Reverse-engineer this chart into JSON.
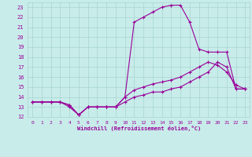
{
  "xlabel": "Windchill (Refroidissement éolien,°C)",
  "background_color": "#c8ecea",
  "grid_color": "#a8d4d0",
  "line_color": "#990099",
  "xlim": [
    -0.5,
    23.5
  ],
  "ylim": [
    12,
    23.5
  ],
  "xticks": [
    0,
    1,
    2,
    3,
    4,
    5,
    6,
    7,
    8,
    9,
    10,
    11,
    12,
    13,
    14,
    15,
    16,
    17,
    18,
    19,
    20,
    21,
    22,
    23
  ],
  "yticks": [
    12,
    13,
    14,
    15,
    16,
    17,
    18,
    19,
    20,
    21,
    22,
    23
  ],
  "series1": [
    13.5,
    13.5,
    13.5,
    13.5,
    13.0,
    12.2,
    13.0,
    13.0,
    13.0,
    13.0,
    14.0,
    14.7,
    15.0,
    15.3,
    15.5,
    15.7,
    16.0,
    16.5,
    17.0,
    17.5,
    17.2,
    16.5,
    15.2,
    14.8
  ],
  "series2": [
    13.5,
    13.5,
    13.5,
    13.5,
    13.2,
    12.2,
    13.0,
    13.0,
    13.0,
    13.0,
    14.0,
    21.5,
    22.0,
    22.5,
    23.0,
    23.2,
    23.2,
    21.5,
    18.8,
    18.5,
    18.5,
    18.5,
    14.8,
    14.8
  ],
  "series3": [
    13.5,
    13.5,
    13.5,
    13.5,
    13.2,
    12.2,
    13.0,
    13.0,
    13.0,
    13.0,
    13.5,
    14.0,
    14.2,
    14.5,
    14.5,
    14.8,
    15.0,
    15.5,
    16.0,
    16.5,
    17.5,
    17.0,
    14.8,
    14.8
  ]
}
